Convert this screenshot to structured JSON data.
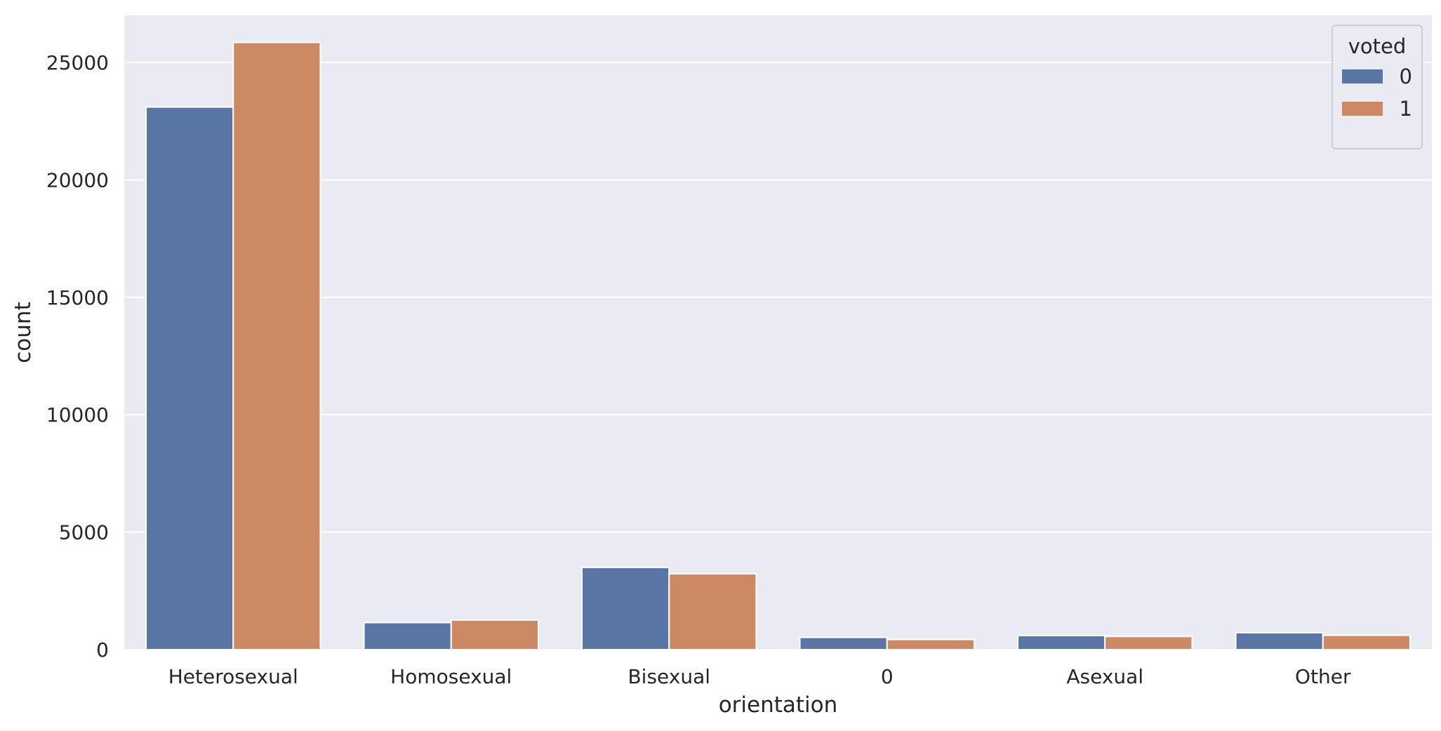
{
  "chart_data": {
    "type": "bar",
    "title": "",
    "xlabel": "orientation",
    "ylabel": "count",
    "categories": [
      "Heterosexual",
      "Homosexual",
      "Bisexual",
      "0",
      "Asexual",
      "Other"
    ],
    "series": [
      {
        "name": "0",
        "values": [
          23100,
          1150,
          3500,
          520,
          600,
          720
        ],
        "color": "#5975a4"
      },
      {
        "name": "1",
        "values": [
          25850,
          1260,
          3230,
          430,
          560,
          610
        ],
        "color": "#cc8963"
      }
    ],
    "ylim": [
      0,
      27000
    ],
    "yticks": [
      0,
      5000,
      10000,
      15000,
      20000,
      25000
    ],
    "grid": true,
    "legend": {
      "title": "voted",
      "placement": "top-right"
    },
    "background_color": "#eaeaf2",
    "grid_color": "#ffffff"
  }
}
